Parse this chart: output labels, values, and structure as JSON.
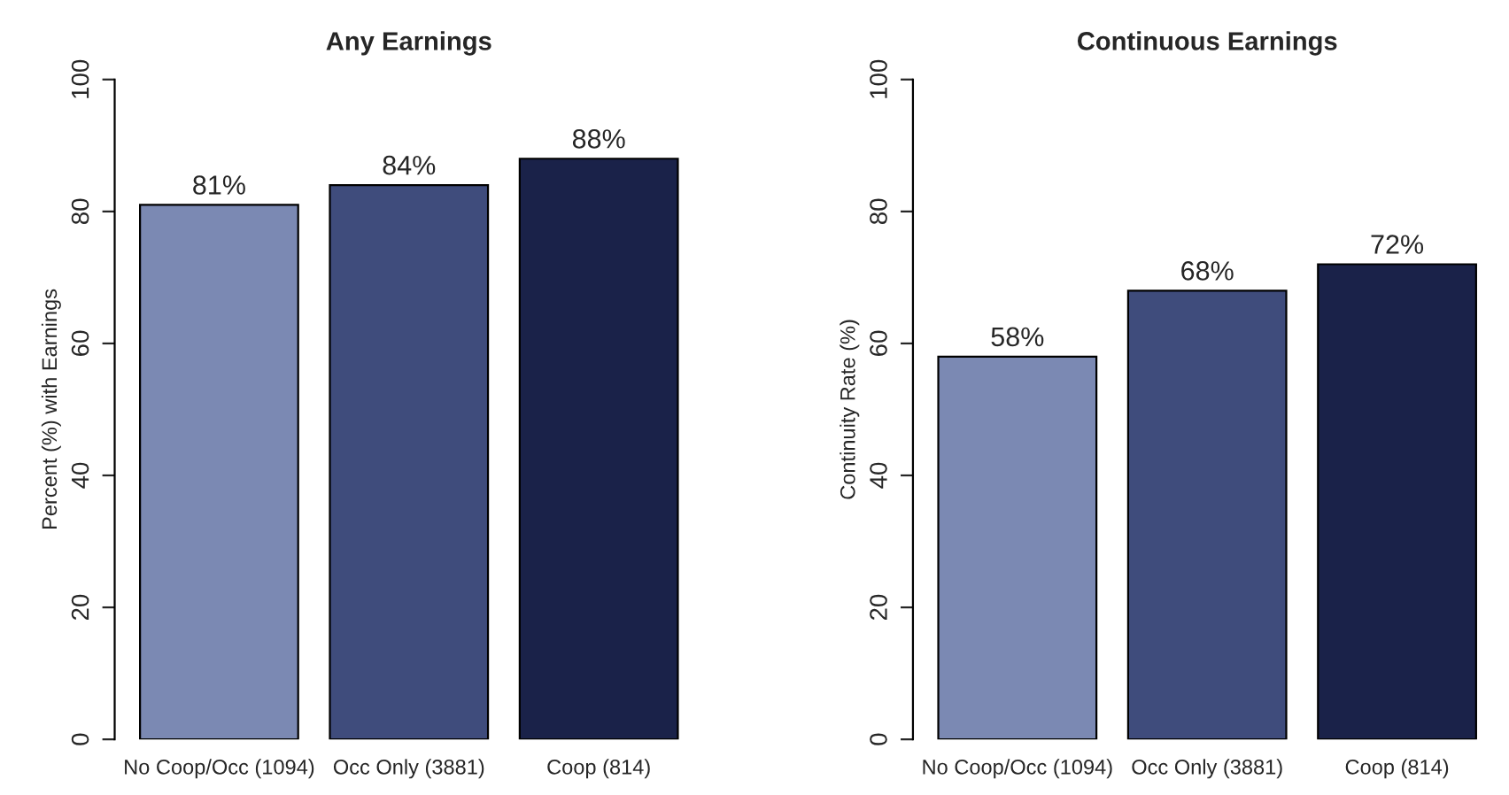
{
  "chart_data": [
    {
      "type": "bar",
      "title": "Any Earnings",
      "ylabel": "Percent (%) with Earnings",
      "categories": [
        "No Coop/Occ (1094)",
        "Occ Only (3881)",
        "Coop (814)"
      ],
      "values": [
        81,
        84,
        88
      ],
      "colors": [
        "#7b89b3",
        "#3f4c7c",
        "#1a2249"
      ],
      "value_labels": [
        "81%",
        "84%",
        "88%"
      ],
      "ylim": [
        0,
        100
      ],
      "yticks": [
        0,
        20,
        40,
        60,
        80,
        100
      ],
      "grid": false
    },
    {
      "type": "bar",
      "title": "Continuous Earnings",
      "ylabel": "Continuity Rate (%)",
      "categories": [
        "No Coop/Occ (1094)",
        "Occ Only (3881)",
        "Coop (814)"
      ],
      "values": [
        58,
        68,
        72
      ],
      "colors": [
        "#7b89b3",
        "#3f4c7c",
        "#1a2249"
      ],
      "value_labels": [
        "58%",
        "68%",
        "72%"
      ],
      "ylim": [
        0,
        100
      ],
      "yticks": [
        0,
        20,
        40,
        60,
        80,
        100
      ],
      "grid": false
    }
  ]
}
